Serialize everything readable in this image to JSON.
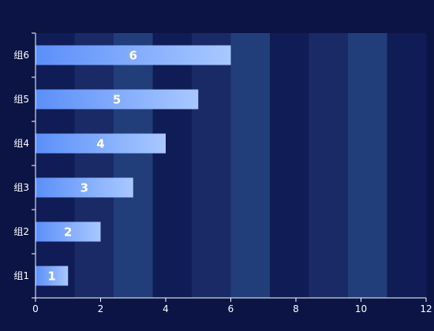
{
  "chart_data": {
    "type": "bar",
    "orientation": "horizontal",
    "categories": [
      "组1",
      "组2",
      "组3",
      "组4",
      "组5",
      "组6"
    ],
    "values": [
      1,
      2,
      3,
      4,
      5,
      6
    ],
    "data_labels": [
      "1",
      "2",
      "3",
      "4",
      "5",
      "6"
    ],
    "xlim": [
      0,
      12
    ],
    "x_ticks": [
      "0",
      "2",
      "4",
      "6",
      "8",
      "10",
      "12"
    ],
    "title": "",
    "xlabel": "",
    "ylabel": "",
    "grid": false,
    "legend": "none",
    "bar_gradient": [
      "#5b8ff9",
      "#a9c8ff"
    ],
    "split_area_colors": [
      "#101c55",
      "#1a2a66",
      "#213e7a"
    ],
    "background": "#0b1445"
  }
}
